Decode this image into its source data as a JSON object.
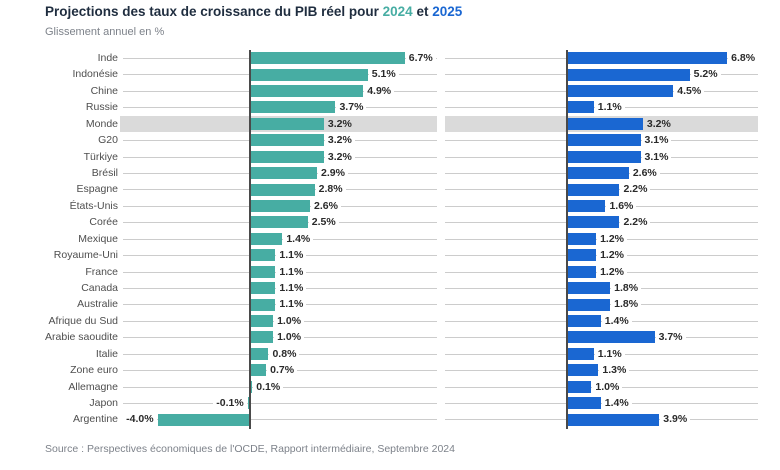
{
  "header": {
    "title_prefix": "Projections des taux de croissance du PIB réel pour",
    "title_year_2024": "2024",
    "title_and": "et",
    "title_year_2025": "2025",
    "subtitle": "Glissement annuel en %"
  },
  "footer": {
    "source": "Source : Perspectives économiques de l'OCDE, Rapport intermédiaire, Septembre 2024"
  },
  "colors": {
    "series_2024": "#47ada3",
    "series_2025": "#1a67d2",
    "highlight_band": "#dadada",
    "leader_line": "#cccccc",
    "axis": "#4a4a4a",
    "title_text": "#1f2d3f",
    "muted_text": "#7d828a"
  },
  "chart_data": {
    "type": "bar",
    "orientation": "horizontal",
    "title": "Projections des taux de croissance du PIB réel pour 2024 et 2025",
    "subtitle": "Glissement annuel en %",
    "value_suffix": "%",
    "value_decimals": 1,
    "categories": [
      "Inde",
      "Indonésie",
      "Chine",
      "Russie",
      "Monde",
      "G20",
      "Türkiye",
      "Brésil",
      "Espagne",
      "États-Unis",
      "Corée",
      "Mexique",
      "Royaume-Uni",
      "France",
      "Canada",
      "Australie",
      "Afrique du Sud",
      "Arabie saoudite",
      "Italie",
      "Zone euro",
      "Allemagne",
      "Japon",
      "Argentine"
    ],
    "highlighted_category": "Monde",
    "series": [
      {
        "name": "2024",
        "color": "#47ada3",
        "values": [
          6.7,
          5.1,
          4.9,
          3.7,
          3.2,
          3.2,
          3.2,
          2.9,
          2.8,
          2.6,
          2.5,
          1.4,
          1.1,
          1.1,
          1.1,
          1.1,
          1.0,
          1.0,
          0.8,
          0.7,
          0.1,
          -0.1,
          -4.0
        ]
      },
      {
        "name": "2025",
        "color": "#1a67d2",
        "values": [
          6.8,
          5.2,
          4.5,
          1.1,
          3.2,
          3.1,
          3.1,
          2.6,
          2.2,
          1.6,
          2.2,
          1.2,
          1.2,
          1.2,
          1.8,
          1.8,
          1.4,
          3.7,
          1.1,
          1.3,
          1.0,
          1.4,
          3.9
        ]
      }
    ],
    "xlim": [
      -4.5,
      8.1
    ],
    "grid": "horizontal leader lines per row",
    "legend": "series years shown as colored text in title"
  }
}
